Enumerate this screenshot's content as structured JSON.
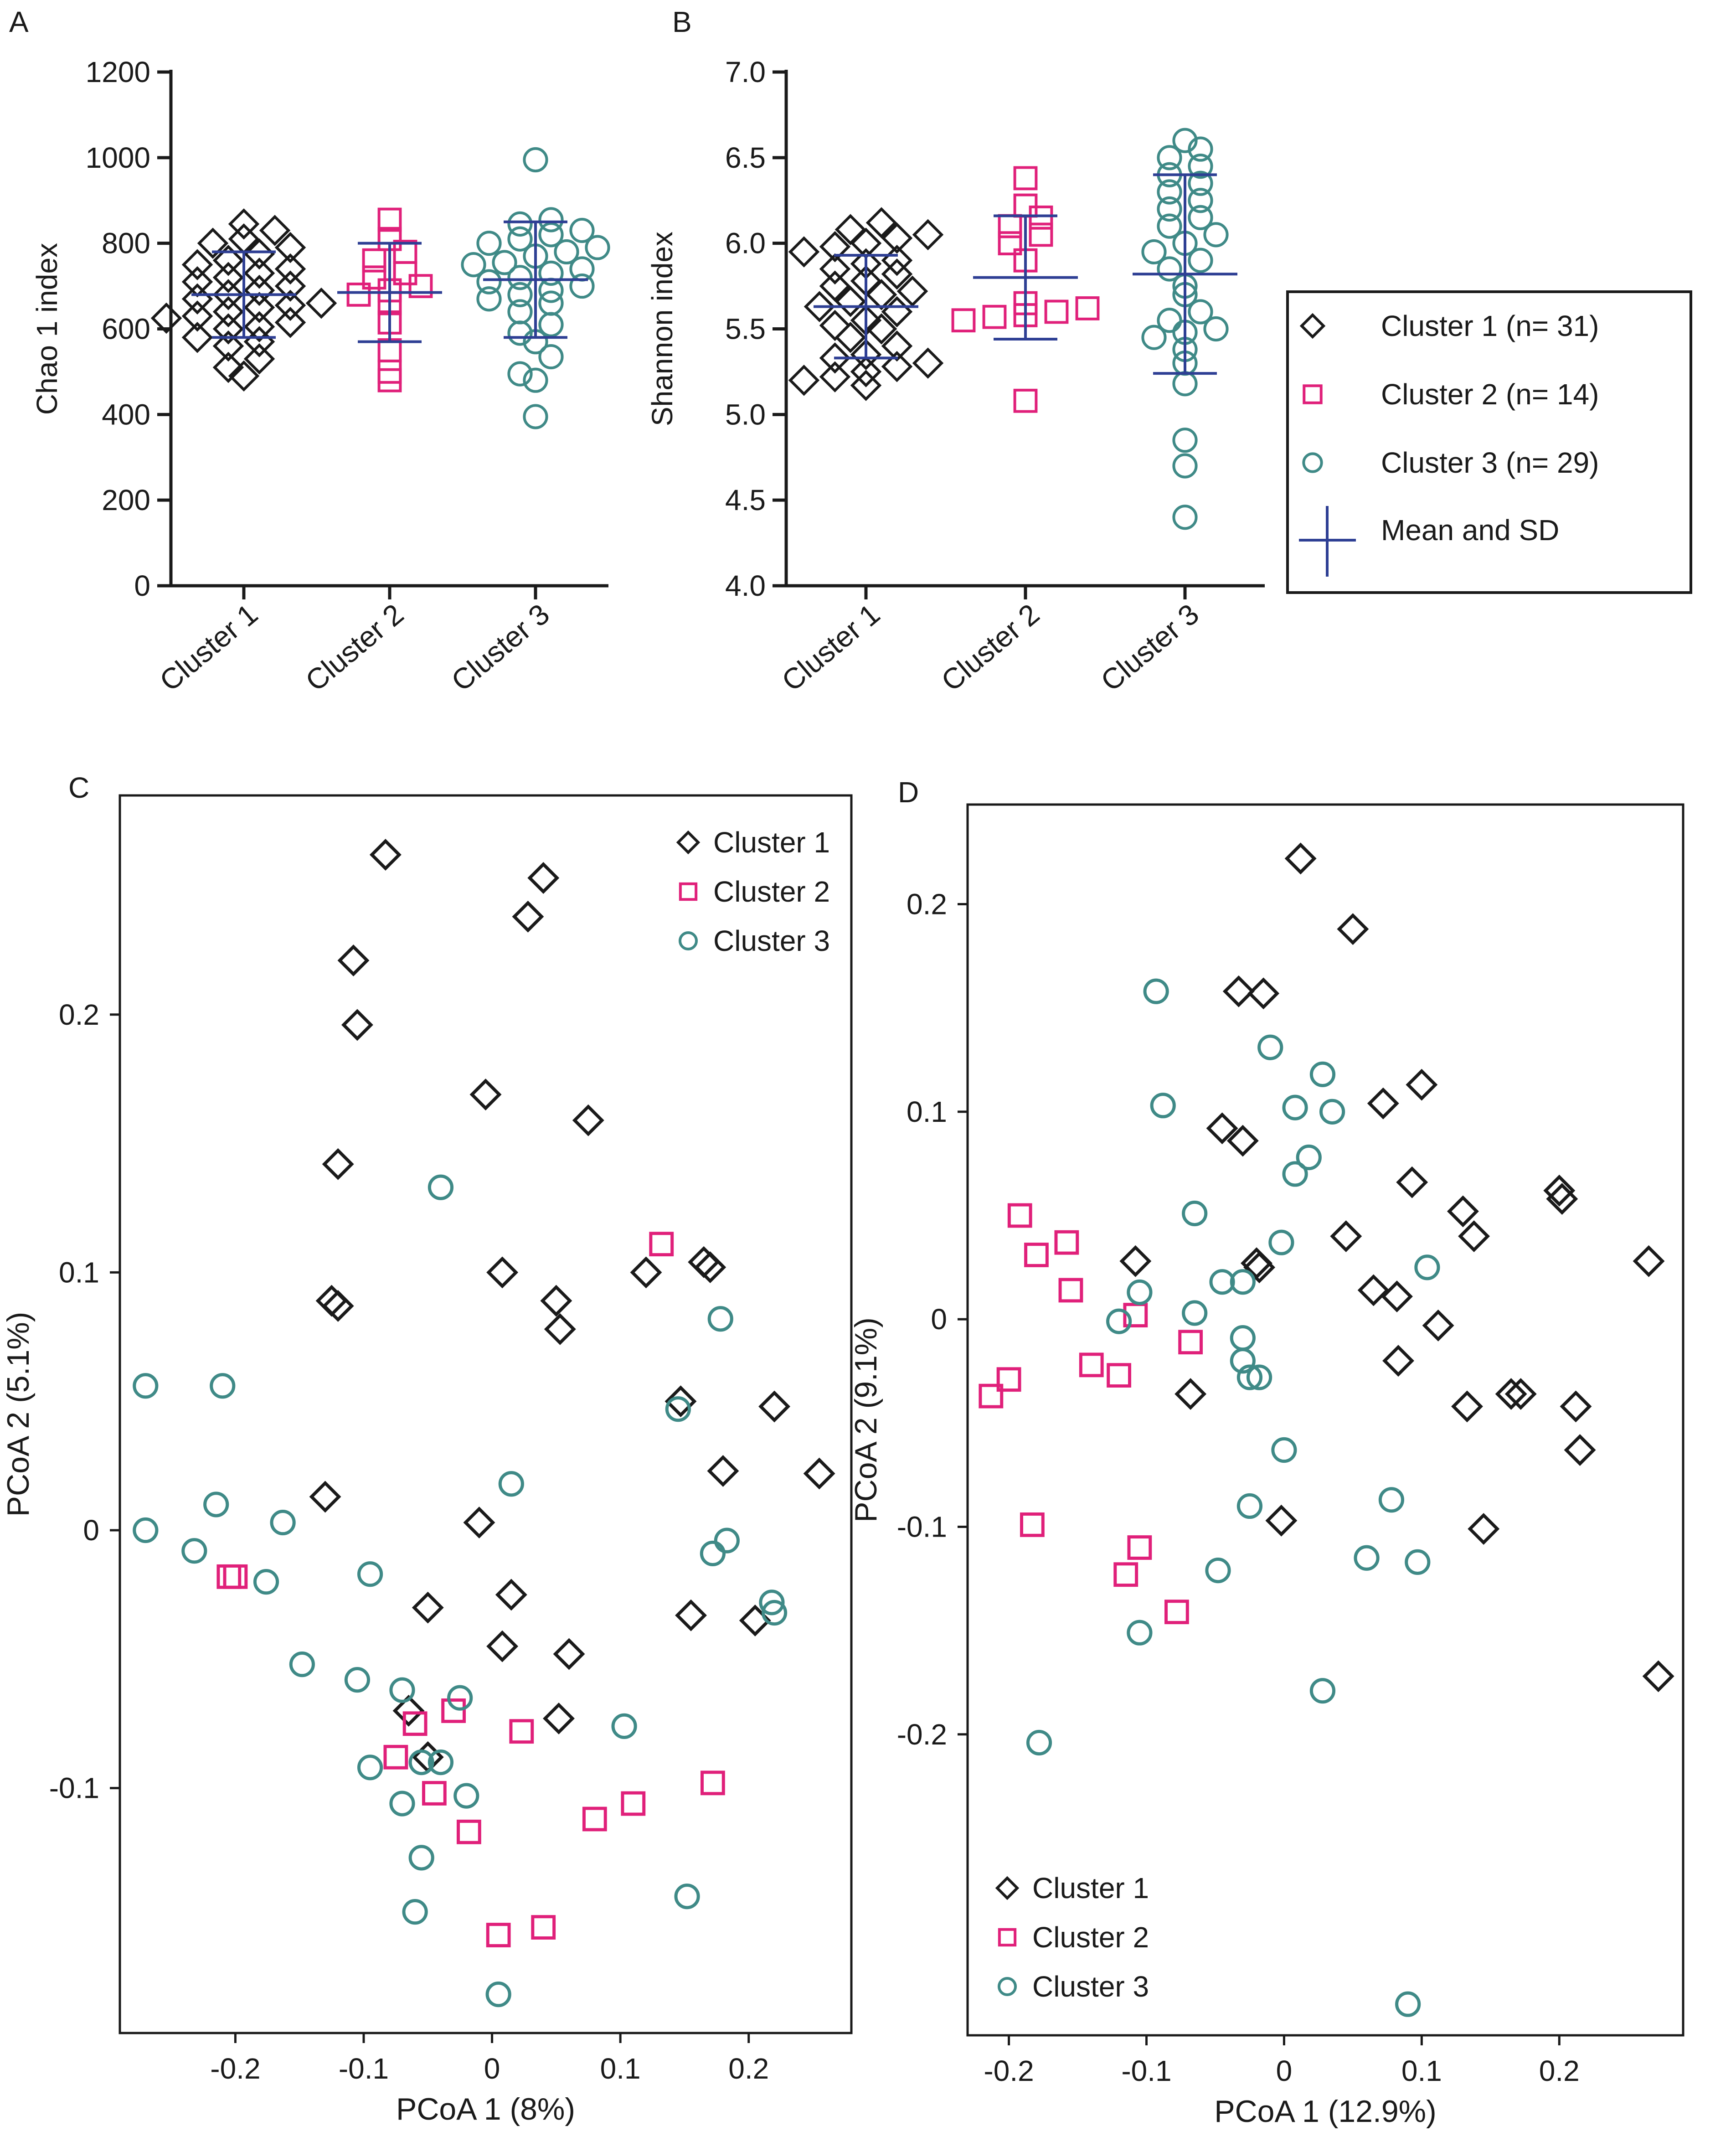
{
  "colors": {
    "cluster1": "#1a1a1a",
    "cluster2": "#e0207a",
    "cluster3": "#3f8a87",
    "mean_sd": "#2e3f94",
    "axis": "#1a1a1a"
  },
  "chart_data": [
    {
      "panel": "A",
      "type": "scatter",
      "subtype": "dot-plot-with-mean-sd",
      "ylabel": "Chao 1 index",
      "ylim": [
        0,
        1200
      ],
      "yticks": [
        "0",
        "200",
        "400",
        "600",
        "800",
        "1000",
        "1200"
      ],
      "categories": [
        "Cluster 1",
        "Cluster 2",
        "Cluster 3"
      ],
      "series": [
        {
          "name": "Cluster 1",
          "mean": 680,
          "sd": 100,
          "values": [
            490,
            510,
            530,
            560,
            570,
            580,
            600,
            605,
            615,
            625,
            630,
            640,
            650,
            655,
            660,
            670,
            680,
            690,
            700,
            710,
            720,
            730,
            740,
            750,
            760,
            775,
            790,
            800,
            810,
            830,
            845
          ]
        },
        {
          "name": "Cluster 2",
          "mean": 685,
          "sd": 115,
          "values": [
            480,
            500,
            550,
            615,
            660,
            680,
            690,
            700,
            720,
            730,
            760,
            780,
            810,
            855
          ]
        },
        {
          "name": "Cluster 3",
          "mean": 715,
          "sd": 135,
          "values": [
            395,
            480,
            495,
            535,
            570,
            590,
            610,
            640,
            660,
            670,
            680,
            690,
            700,
            710,
            720,
            730,
            740,
            750,
            755,
            770,
            780,
            790,
            800,
            810,
            820,
            830,
            845,
            855,
            995
          ]
        }
      ]
    },
    {
      "panel": "B",
      "type": "scatter",
      "subtype": "dot-plot-with-mean-sd",
      "ylabel": "Shannon  index",
      "ylim": [
        4.0,
        7.0
      ],
      "yticks": [
        "4.0",
        "4.5",
        "5.0",
        "5.5",
        "6.0",
        "6.5",
        "7.0"
      ],
      "categories": [
        "Cluster 1",
        "Cluster 2",
        "Cluster 3"
      ],
      "series": [
        {
          "name": "Cluster 1",
          "mean": 5.63,
          "sd": 0.3,
          "values": [
            5.17,
            5.2,
            5.22,
            5.25,
            5.28,
            5.3,
            5.33,
            5.35,
            5.4,
            5.45,
            5.5,
            5.52,
            5.55,
            5.6,
            5.63,
            5.66,
            5.7,
            5.72,
            5.75,
            5.78,
            5.82,
            5.85,
            5.88,
            5.9,
            5.95,
            5.98,
            6.0,
            6.03,
            6.05,
            6.08,
            6.12
          ]
        },
        {
          "name": "Cluster 2",
          "mean": 5.8,
          "sd": 0.36,
          "values": [
            5.08,
            5.55,
            5.57,
            5.58,
            5.6,
            5.62,
            5.65,
            5.9,
            6.0,
            6.05,
            6.1,
            6.15,
            6.22,
            6.38
          ]
        },
        {
          "name": "Cluster 3",
          "mean": 5.82,
          "sd": 0.58,
          "values": [
            4.4,
            4.7,
            4.85,
            5.18,
            5.3,
            5.38,
            5.45,
            5.48,
            5.5,
            5.55,
            5.6,
            5.7,
            5.75,
            5.85,
            5.9,
            5.95,
            6.0,
            6.05,
            6.1,
            6.15,
            6.2,
            6.25,
            6.3,
            6.35,
            6.4,
            6.45,
            6.5,
            6.55,
            6.6
          ]
        }
      ],
      "legend": [
        {
          "key": "cluster1",
          "label": "Cluster 1 (n= 31)"
        },
        {
          "key": "cluster2",
          "label": "Cluster 2 (n= 14)"
        },
        {
          "key": "cluster3",
          "label": "Cluster 3 (n= 29)"
        },
        {
          "key": "mean_sd",
          "label": "Mean and SD"
        }
      ]
    },
    {
      "panel": "C",
      "type": "scatter",
      "xlabel": "PCoA 1 (8%)",
      "ylabel": "PCoA 2 (5.1%)",
      "xlim": [
        -0.29,
        0.28
      ],
      "ylim": [
        -0.195,
        0.285
      ],
      "xticks": [
        "-0.2",
        "-0.1",
        "0",
        "0.1",
        "0.2"
      ],
      "yticks": [
        "-0.1",
        "0",
        "0.1",
        "0.2"
      ],
      "legend": [
        "Cluster 1",
        "Cluster 2",
        "Cluster 3"
      ],
      "series": [
        {
          "name": "Cluster 1",
          "points": [
            [
              -0.083,
              0.262
            ],
            [
              0.04,
              0.253
            ],
            [
              0.028,
              0.238
            ],
            [
              -0.108,
              0.221
            ],
            [
              -0.105,
              0.196
            ],
            [
              -0.005,
              0.169
            ],
            [
              0.075,
              0.159
            ],
            [
              -0.12,
              0.142
            ],
            [
              0.008,
              0.1
            ],
            [
              0.12,
              0.1
            ],
            [
              0.165,
              0.104
            ],
            [
              0.17,
              0.102
            ],
            [
              -0.125,
              0.089
            ],
            [
              -0.12,
              0.087
            ],
            [
              0.05,
              0.089
            ],
            [
              0.053,
              0.078
            ],
            [
              0.147,
              0.05
            ],
            [
              0.22,
              0.048
            ],
            [
              0.18,
              0.023
            ],
            [
              0.255,
              0.022
            ],
            [
              -0.13,
              0.013
            ],
            [
              -0.01,
              0.003
            ],
            [
              -0.05,
              -0.03
            ],
            [
              0.015,
              -0.025
            ],
            [
              0.155,
              -0.033
            ],
            [
              0.205,
              -0.035
            ],
            [
              0.008,
              -0.045
            ],
            [
              0.06,
              -0.048
            ],
            [
              -0.065,
              -0.07
            ],
            [
              0.052,
              -0.073
            ],
            [
              -0.05,
              -0.088
            ]
          ]
        },
        {
          "name": "Cluster 2",
          "points": [
            [
              0.132,
              0.111
            ],
            [
              -0.205,
              -0.018
            ],
            [
              -0.2,
              -0.018
            ],
            [
              -0.06,
              -0.075
            ],
            [
              -0.03,
              -0.07
            ],
            [
              0.023,
              -0.078
            ],
            [
              -0.075,
              -0.088
            ],
            [
              -0.045,
              -0.102
            ],
            [
              0.11,
              -0.106
            ],
            [
              0.08,
              -0.112
            ],
            [
              0.172,
              -0.098
            ],
            [
              -0.018,
              -0.117
            ],
            [
              0.04,
              -0.154
            ],
            [
              0.005,
              -0.157
            ]
          ]
        },
        {
          "name": "Cluster 3",
          "points": [
            [
              -0.27,
              0.056
            ],
            [
              -0.21,
              0.056
            ],
            [
              -0.04,
              0.133
            ],
            [
              0.178,
              0.082
            ],
            [
              0.145,
              0.047
            ],
            [
              -0.215,
              0.01
            ],
            [
              -0.27,
              0.0
            ],
            [
              -0.163,
              0.003
            ],
            [
              0.015,
              0.018
            ],
            [
              -0.232,
              -0.008
            ],
            [
              0.183,
              -0.004
            ],
            [
              0.172,
              -0.009
            ],
            [
              -0.095,
              -0.017
            ],
            [
              -0.176,
              -0.02
            ],
            [
              0.218,
              -0.028
            ],
            [
              0.22,
              -0.032
            ],
            [
              -0.148,
              -0.052
            ],
            [
              -0.105,
              -0.058
            ],
            [
              -0.07,
              -0.062
            ],
            [
              -0.025,
              -0.065
            ],
            [
              0.103,
              -0.076
            ],
            [
              -0.055,
              -0.09
            ],
            [
              -0.04,
              -0.09
            ],
            [
              -0.095,
              -0.092
            ],
            [
              -0.07,
              -0.106
            ],
            [
              -0.02,
              -0.103
            ],
            [
              -0.055,
              -0.127
            ],
            [
              -0.06,
              -0.148
            ],
            [
              0.152,
              -0.142
            ],
            [
              0.005,
              -0.18
            ]
          ]
        }
      ]
    },
    {
      "panel": "D",
      "type": "scatter",
      "xlabel": "PCoA 1 (12.9%)",
      "ylabel": "PCoA 2 (9.1%)",
      "xlim": [
        -0.23,
        0.29
      ],
      "ylim": [
        -0.345,
        0.248
      ],
      "xticks": [
        "-0.2",
        "-0.1",
        "0",
        "0.1",
        "0.2"
      ],
      "yticks": [
        "-0.2",
        "-0.1",
        "0",
        "0.1",
        "0.2"
      ],
      "legend": [
        "Cluster 1",
        "Cluster 2",
        "Cluster 3"
      ],
      "series": [
        {
          "name": "Cluster 1",
          "points": [
            [
              0.012,
              0.222
            ],
            [
              0.05,
              0.188
            ],
            [
              -0.033,
              0.158
            ],
            [
              -0.015,
              0.157
            ],
            [
              0.1,
              0.113
            ],
            [
              0.072,
              0.104
            ],
            [
              -0.045,
              0.092
            ],
            [
              -0.03,
              0.086
            ],
            [
              0.093,
              0.066
            ],
            [
              0.2,
              0.062
            ],
            [
              0.202,
              0.058
            ],
            [
              0.13,
              0.052
            ],
            [
              0.045,
              0.04
            ],
            [
              0.138,
              0.04
            ],
            [
              -0.108,
              0.028
            ],
            [
              -0.02,
              0.027
            ],
            [
              -0.018,
              0.025
            ],
            [
              0.265,
              0.028
            ],
            [
              0.065,
              0.014
            ],
            [
              0.082,
              0.011
            ],
            [
              0.112,
              -0.003
            ],
            [
              -0.068,
              -0.036
            ],
            [
              0.083,
              -0.02
            ],
            [
              0.133,
              -0.042
            ],
            [
              0.165,
              -0.036
            ],
            [
              0.172,
              -0.036
            ],
            [
              0.212,
              -0.042
            ],
            [
              0.215,
              -0.063
            ],
            [
              0.145,
              -0.101
            ],
            [
              -0.002,
              -0.097
            ],
            [
              0.272,
              -0.172
            ]
          ]
        },
        {
          "name": "Cluster 2",
          "points": [
            [
              -0.192,
              0.05
            ],
            [
              -0.158,
              0.037
            ],
            [
              -0.18,
              0.031
            ],
            [
              -0.155,
              0.014
            ],
            [
              -0.108,
              0.002
            ],
            [
              -0.068,
              -0.011
            ],
            [
              -0.14,
              -0.022
            ],
            [
              -0.12,
              -0.027
            ],
            [
              -0.2,
              -0.029
            ],
            [
              -0.213,
              -0.037
            ],
            [
              -0.183,
              -0.099
            ],
            [
              -0.105,
              -0.11
            ],
            [
              -0.115,
              -0.123
            ],
            [
              -0.078,
              -0.141
            ]
          ]
        },
        {
          "name": "Cluster 3",
          "points": [
            [
              -0.093,
              0.158
            ],
            [
              -0.01,
              0.131
            ],
            [
              0.028,
              0.118
            ],
            [
              -0.088,
              0.103
            ],
            [
              0.008,
              0.102
            ],
            [
              0.035,
              0.1
            ],
            [
              0.018,
              0.078
            ],
            [
              0.008,
              0.07
            ],
            [
              -0.065,
              0.051
            ],
            [
              0.104,
              0.025
            ],
            [
              -0.045,
              0.018
            ],
            [
              -0.03,
              0.018
            ],
            [
              -0.105,
              0.013
            ],
            [
              -0.065,
              0.003
            ],
            [
              -0.12,
              -0.001
            ],
            [
              -0.03,
              -0.009
            ],
            [
              -0.03,
              -0.02
            ],
            [
              -0.025,
              -0.028
            ],
            [
              -0.018,
              -0.028
            ],
            [
              -0.002,
              0.037
            ],
            [
              0.0,
              -0.063
            ],
            [
              -0.025,
              -0.09
            ],
            [
              0.078,
              -0.087
            ],
            [
              0.06,
              -0.115
            ],
            [
              0.097,
              -0.117
            ],
            [
              -0.048,
              -0.121
            ],
            [
              -0.105,
              -0.151
            ],
            [
              0.028,
              -0.179
            ],
            [
              -0.178,
              -0.204
            ],
            [
              0.09,
              -0.33
            ]
          ]
        }
      ]
    }
  ],
  "panels": {
    "A": "A",
    "B": "B",
    "C": "C",
    "D": "D"
  },
  "legends": {
    "AB": [
      "Cluster 1 (n= 31)",
      "Cluster 2 (n= 14)",
      "Cluster 3 (n= 29)",
      "Mean and SD"
    ],
    "C": [
      "Cluster 1",
      "Cluster 2",
      "Cluster 3"
    ],
    "D": [
      "Cluster 1",
      "Cluster 2",
      "Cluster 3"
    ]
  }
}
